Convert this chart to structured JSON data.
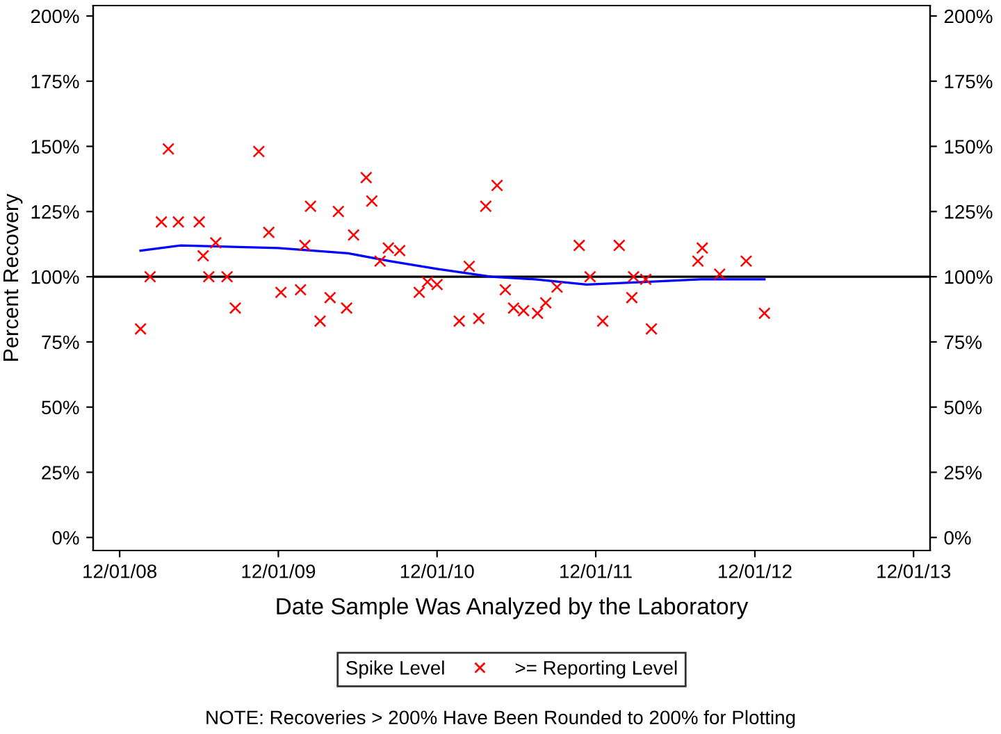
{
  "chart_data": {
    "type": "scatter",
    "xlabel": "Date Sample Was Analyzed by the Laboratory",
    "ylabel": "Percent Recovery",
    "legend_title": "Spike Level",
    "annotations": [
      "NOTE: Recoveries > 200% Have Been Rounded to 200% for Plotting"
    ],
    "xlim": [
      "2008-10-01",
      "2014-01-08"
    ],
    "xticks": [
      {
        "value": "2008-12-01",
        "label": "12/01/08"
      },
      {
        "value": "2009-12-01",
        "label": "12/01/09"
      },
      {
        "value": "2010-12-01",
        "label": "12/01/10"
      },
      {
        "value": "2011-12-01",
        "label": "12/01/11"
      },
      {
        "value": "2012-12-01",
        "label": "12/01/12"
      },
      {
        "value": "2013-12-01",
        "label": "12/01/13"
      }
    ],
    "ylim": [
      -5,
      204
    ],
    "yticks": [
      {
        "value": 0,
        "label": "0%"
      },
      {
        "value": 25,
        "label": "25%"
      },
      {
        "value": 50,
        "label": "50%"
      },
      {
        "value": 75,
        "label": "75%"
      },
      {
        "value": 100,
        "label": "100%"
      },
      {
        "value": 125,
        "label": "125%"
      },
      {
        "value": 150,
        "label": "150%"
      },
      {
        "value": 175,
        "label": "175%"
      },
      {
        "value": 200,
        "label": "200%"
      }
    ],
    "y2lim": [
      -5,
      204
    ],
    "y2ticks": [
      {
        "value": 0,
        "label": "0%"
      },
      {
        "value": 25,
        "label": "25%"
      },
      {
        "value": 50,
        "label": "50%"
      },
      {
        "value": 75,
        "label": "75%"
      },
      {
        "value": 100,
        "label": "100%"
      },
      {
        "value": 125,
        "label": "125%"
      },
      {
        "value": 150,
        "label": "150%"
      },
      {
        "value": 175,
        "label": "175%"
      },
      {
        "value": 200,
        "label": "200%"
      }
    ],
    "ref_lines": [
      {
        "axis": "y",
        "value": 100,
        "color": "#000000"
      }
    ],
    "grid": false,
    "legend": "bottom",
    "series": [
      {
        "name": ">= Reporting Level",
        "marker": "cross",
        "color": "#ff0000",
        "x": [
          "2009-01-18",
          "2009-02-09",
          "2009-03-07",
          "2009-03-23",
          "2009-04-15",
          "2009-06-02",
          "2009-06-11",
          "2009-06-24",
          "2009-07-10",
          "2009-08-05",
          "2009-08-24",
          "2009-10-17",
          "2009-11-09",
          "2009-12-07",
          "2010-01-21",
          "2010-01-31",
          "2010-02-13",
          "2010-03-07",
          "2010-03-30",
          "2010-04-18",
          "2010-05-07",
          "2010-05-23",
          "2010-06-21",
          "2010-07-04",
          "2010-07-23",
          "2010-08-11",
          "2010-09-06",
          "2010-10-21",
          "2010-11-09",
          "2010-12-01",
          "2011-01-21",
          "2011-02-13",
          "2011-03-07",
          "2011-03-23",
          "2011-04-18",
          "2011-05-07",
          "2011-05-26",
          "2011-06-18",
          "2011-07-20",
          "2011-08-08",
          "2011-09-03",
          "2011-10-24",
          "2011-11-18",
          "2011-12-17",
          "2012-01-24",
          "2012-02-22",
          "2012-02-26",
          "2012-03-25",
          "2012-04-07",
          "2012-07-23",
          "2012-08-02",
          "2012-09-11",
          "2012-11-11",
          "2012-12-23"
        ],
        "values": [
          80,
          100,
          121,
          149,
          121,
          121,
          108,
          100,
          113,
          100,
          88,
          148,
          117,
          94,
          95,
          112,
          127,
          83,
          92,
          125,
          88,
          116,
          138,
          129,
          106,
          111,
          110,
          94,
          98,
          97,
          83,
          104,
          84,
          127,
          135,
          95,
          88,
          87,
          86,
          90,
          96,
          112,
          100,
          83,
          112,
          92,
          100,
          99,
          80,
          106,
          111,
          101,
          106,
          86
        ]
      },
      {
        "type": "line",
        "line_style": "solid",
        "marker": "none",
        "color": "#0000ff",
        "x": [
          "2009-01-18",
          "2009-04-21",
          "2009-12-01",
          "2010-05-10",
          "2010-08-14",
          "2010-12-01",
          "2011-04-05",
          "2011-07-14",
          "2011-11-10",
          "2012-03-24",
          "2012-07-30",
          "2012-12-23"
        ],
        "values": [
          110,
          112,
          111,
          109,
          106,
          103,
          100,
          99,
          97,
          98,
          99,
          99
        ]
      }
    ]
  }
}
